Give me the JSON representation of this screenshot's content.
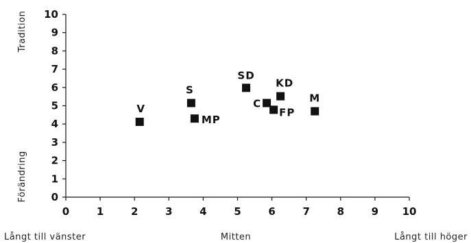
{
  "chart_data": {
    "type": "scatter",
    "xlim": [
      0,
      10
    ],
    "ylim": [
      0,
      10
    ],
    "x_ticks": [
      0,
      1,
      2,
      3,
      4,
      5,
      6,
      7,
      8,
      9,
      10
    ],
    "y_ticks": [
      0,
      1,
      2,
      3,
      4,
      5,
      6,
      7,
      8,
      9,
      10
    ],
    "grid": false,
    "x_axis_labels": {
      "left": "Långt till vänster",
      "center": "Mitten",
      "right": "Långt till höger"
    },
    "y_axis_labels": {
      "top": "Tradition",
      "bottom": "Förändring"
    },
    "points": [
      {
        "label": "V",
        "x": 2.15,
        "y": 4.12
      },
      {
        "label": "S",
        "x": 3.65,
        "y": 5.15
      },
      {
        "label": "MP",
        "x": 3.75,
        "y": 4.3
      },
      {
        "label": "SD",
        "x": 5.25,
        "y": 5.98
      },
      {
        "label": "C",
        "x": 5.85,
        "y": 5.15
      },
      {
        "label": "FP",
        "x": 6.05,
        "y": 4.78
      },
      {
        "label": "KD",
        "x": 6.25,
        "y": 5.52
      },
      {
        "label": "M",
        "x": 7.25,
        "y": 4.7
      }
    ],
    "marker_color": "#111111"
  }
}
